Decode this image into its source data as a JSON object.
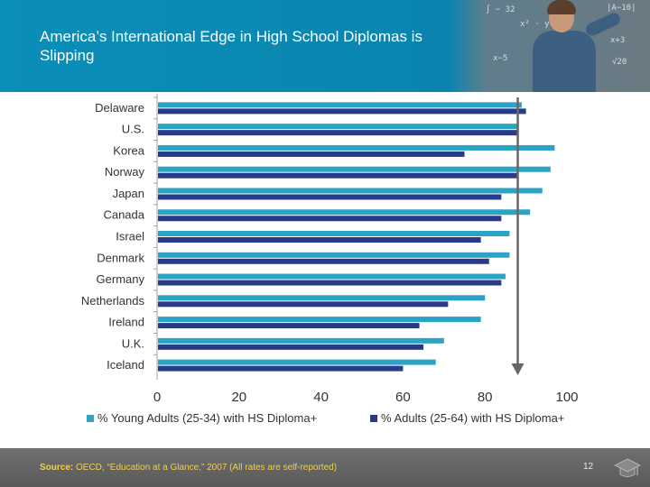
{
  "title": "America’s International Edge in High School Diplomas is Slipping",
  "colors": {
    "header_blue": "#0a8fb8",
    "young_series": "#2aa3c4",
    "adults_series": "#283a8a",
    "footer_gray": "#636363",
    "source_yellow": "#f2d04a"
  },
  "chart_data": {
    "type": "bar",
    "orientation": "horizontal",
    "categories": [
      "Delaware",
      "U.S.",
      "Korea",
      "Norway",
      "Japan",
      "Canada",
      "Israel",
      "Denmark",
      "Germany",
      "Netherlands",
      "Ireland",
      "U.K.",
      "Iceland"
    ],
    "series": [
      {
        "name": "% Young Adults (25-34) with HS Diploma+",
        "color": "#2aa3c4",
        "values": [
          89,
          88,
          97,
          96,
          94,
          91,
          86,
          86,
          85,
          80,
          79,
          70,
          68
        ]
      },
      {
        "name": "% Adults (25-64) with HS Diploma+",
        "color": "#283a8a",
        "values": [
          90,
          88,
          75,
          88,
          84,
          84,
          79,
          81,
          84,
          71,
          64,
          65,
          60
        ]
      }
    ],
    "xlim": [
      0,
      100
    ],
    "xticks": [
      "0",
      "20",
      "40",
      "60",
      "80",
      "100"
    ],
    "reference_arrow_value": 88,
    "legend_position": "bottom",
    "grid": false
  },
  "footer": {
    "source_label": "Source:",
    "source_text": " OECD, “Education at a Glance,” 2007 (All rates are self-reported)",
    "page_number": "12"
  }
}
